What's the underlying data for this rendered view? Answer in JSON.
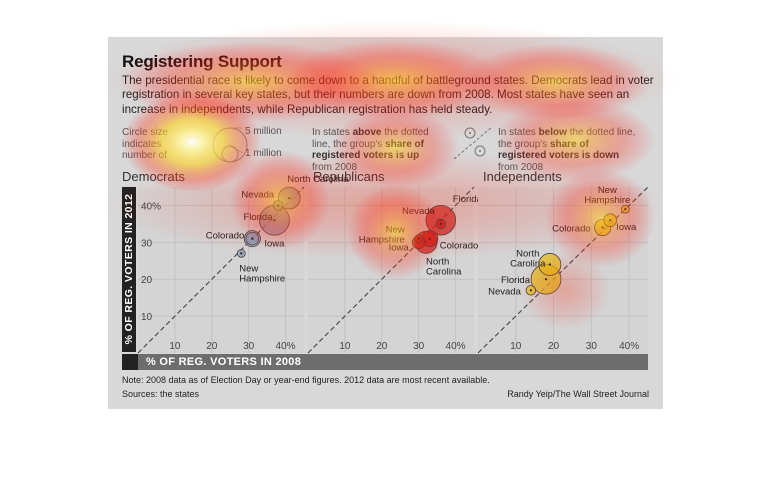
{
  "header": {
    "title": "Registering Support",
    "lede": "The presidential race is likely to come down to a handful of battleground states. Democrats lead in voter registration in several key states, but their numbers are down from 2008. Most states have seen an increase in independents, while Republican registration has held steady."
  },
  "legend": {
    "size_text": "Circle size indicates number of",
    "size_big": "5 million",
    "size_small": "1 million",
    "above_1": "In states ",
    "above_bold1": "above",
    "above_2": " the dotted line, the group's ",
    "above_bold2": "share of registered voters is up",
    "above_3": " from 2008",
    "below_1": "In states ",
    "below_bold1": "below",
    "below_2": " the dotted line, the group's ",
    "below_bold2": "share of registered voters is down",
    "below_3": " from 2008"
  },
  "axes": {
    "ylabel": "% OF REG. VOTERS IN 2012",
    "xlabel": "% OF REG. VOTERS IN 2008"
  },
  "footer": {
    "note": "Note: 2008 data as of Election Day or year-end figures. 2012 data are most recent available.",
    "sources": "Sources: the states",
    "credit": "Randy Yeip/The Wall Street Journal"
  },
  "colors": {
    "democrats": "#8a9bb4",
    "republicans": "#c62020",
    "independents": "#e2c21a",
    "background": "#d8d8d8"
  },
  "chart_data": [
    {
      "type": "scatter",
      "title": "Democrats",
      "xlim": [
        0,
        45
      ],
      "ylim": [
        0,
        45
      ],
      "xticks": [
        "10",
        "20",
        "30",
        "40%"
      ],
      "yticks": [
        "10",
        "20",
        "30",
        "40%"
      ],
      "points": [
        {
          "label": "North Carolina",
          "x": 41,
          "y": 42,
          "size": 6.2
        },
        {
          "label": "Nevada",
          "x": 38,
          "y": 40,
          "size": 1.2
        },
        {
          "label": "Florida",
          "x": 37,
          "y": 36,
          "size": 11.5
        },
        {
          "label": "Colorado",
          "x": 31,
          "y": 31,
          "size": 3.4
        },
        {
          "label": "Iowa",
          "x": 31,
          "y": 31,
          "size": 2.1
        },
        {
          "label": "New Hampshire",
          "x": 28,
          "y": 27,
          "size": 0.8
        }
      ]
    },
    {
      "type": "scatter",
      "title": "Republicans",
      "xlim": [
        0,
        45
      ],
      "ylim": [
        0,
        45
      ],
      "xticks": [
        "10",
        "20",
        "30",
        "40%"
      ],
      "yticks": [],
      "points": [
        {
          "label": "Florida",
          "x": 36,
          "y": 36,
          "size": 11.4
        },
        {
          "label": "Nevada",
          "x": 36,
          "y": 35,
          "size": 1.2
        },
        {
          "label": "New Hampshire",
          "x": 30,
          "y": 31,
          "size": 0.8
        },
        {
          "label": "Iowa",
          "x": 30,
          "y": 30,
          "size": 2.1
        },
        {
          "label": "Colorado",
          "x": 33,
          "y": 31,
          "size": 3.4
        },
        {
          "label": "North Carolina",
          "x": 32,
          "y": 30,
          "size": 6.3
        }
      ]
    },
    {
      "type": "scatter",
      "title": "Independents",
      "xlim": [
        0,
        45
      ],
      "ylim": [
        0,
        45
      ],
      "xticks": [
        "10",
        "20",
        "30",
        "40%"
      ],
      "yticks": [],
      "points": [
        {
          "label": "New Hampshire",
          "x": 39,
          "y": 39,
          "size": 0.8
        },
        {
          "label": "Iowa",
          "x": 35,
          "y": 36,
          "size": 2.1
        },
        {
          "label": "Colorado",
          "x": 33,
          "y": 34,
          "size": 3.4
        },
        {
          "label": "North Carolina",
          "x": 19,
          "y": 24,
          "size": 6.3
        },
        {
          "label": "Florida",
          "x": 18,
          "y": 20,
          "size": 11.5
        },
        {
          "label": "Nevada",
          "x": 14,
          "y": 17,
          "size": 1.2
        }
      ]
    }
  ]
}
